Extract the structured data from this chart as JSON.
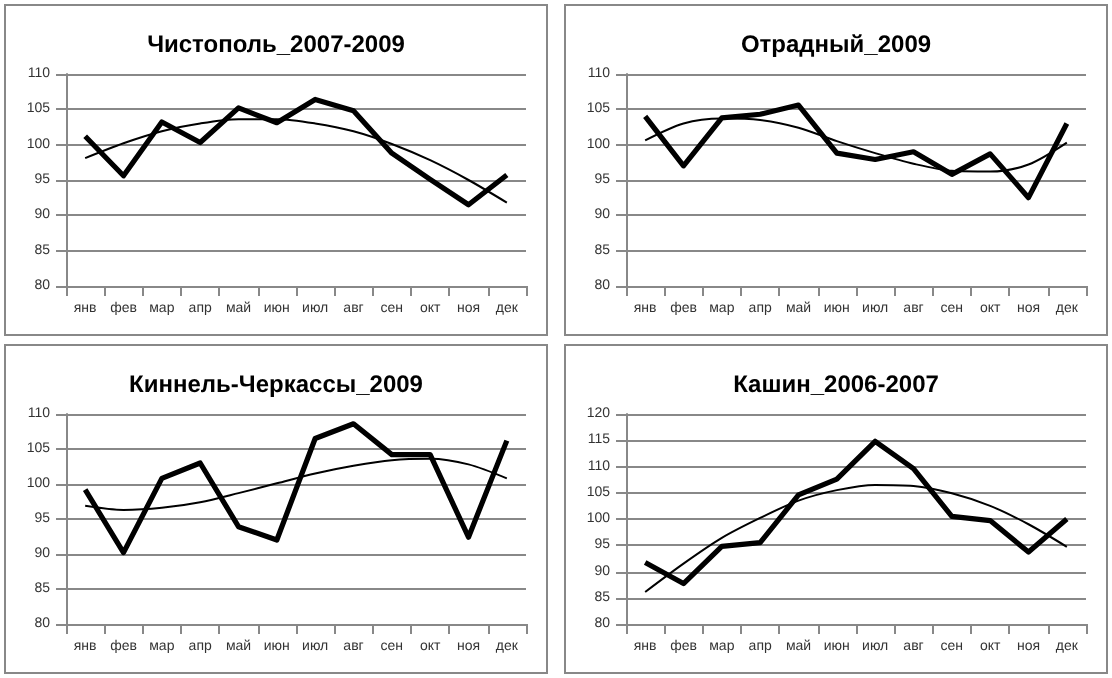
{
  "chart_data": [
    {
      "type": "line",
      "title": "Чистополь_2007-2009",
      "categories": [
        "янв",
        "фев",
        "мар",
        "апр",
        "май",
        "июн",
        "июл",
        "авг",
        "сен",
        "окт",
        "ноя",
        "дек"
      ],
      "ylim": [
        80,
        110
      ],
      "yticks": [
        80,
        85,
        90,
        95,
        100,
        105,
        110
      ],
      "grid": "y",
      "marker": "none",
      "line_style": "solid",
      "series": [
        {
          "color": "#000000",
          "values": [
            101.2,
            95.6,
            103.2,
            100.3,
            105.2,
            103.1,
            106.4,
            104.8,
            98.8,
            95.1,
            91.5,
            95.7
          ]
        },
        {
          "color": "#000000",
          "values": [
            98.1,
            100.2,
            101.9,
            103.0,
            103.6,
            103.6,
            103.0,
            101.9,
            100.1,
            97.8,
            95.0,
            91.8
          ]
        }
      ]
    },
    {
      "type": "line",
      "title": "Отрадный_2009",
      "categories": [
        "янв",
        "фев",
        "мар",
        "апр",
        "май",
        "июн",
        "июл",
        "авг",
        "сен",
        "окт",
        "ноя",
        "дек"
      ],
      "ylim": [
        80,
        110
      ],
      "yticks": [
        80,
        85,
        90,
        95,
        100,
        105,
        110
      ],
      "grid": "y",
      "marker": "none",
      "line_style": "solid",
      "series": [
        {
          "color": "#000000",
          "values": [
            104.0,
            97.0,
            103.8,
            104.3,
            105.6,
            98.8,
            97.9,
            99.0,
            95.8,
            98.7,
            92.5,
            103.0
          ]
        },
        {
          "color": "#000000",
          "values": [
            100.6,
            103.0,
            103.7,
            103.5,
            102.4,
            100.5,
            98.8,
            97.3,
            96.3,
            96.2,
            97.2,
            100.3
          ]
        }
      ]
    },
    {
      "type": "line",
      "title": "Киннель-Черкассы_2009",
      "categories": [
        "янв",
        "фев",
        "мар",
        "апр",
        "май",
        "июн",
        "июл",
        "авг",
        "сен",
        "окт",
        "ноя",
        "дек"
      ],
      "ylim": [
        80,
        110
      ],
      "yticks": [
        80,
        85,
        90,
        95,
        100,
        105,
        110
      ],
      "grid": "y",
      "marker": "none",
      "line_style": "solid",
      "series": [
        {
          "color": "#000000",
          "values": [
            99.2,
            90.2,
            100.8,
            103.0,
            93.9,
            92.0,
            106.5,
            108.6,
            104.2,
            104.2,
            92.4,
            106.2
          ]
        },
        {
          "color": "#000000",
          "values": [
            96.9,
            96.3,
            96.6,
            97.4,
            98.7,
            100.1,
            101.5,
            102.6,
            103.4,
            103.6,
            102.8,
            100.8
          ]
        }
      ]
    },
    {
      "type": "line",
      "title": "Кашин_2006-2007",
      "categories": [
        "янв",
        "фев",
        "мар",
        "апр",
        "май",
        "июн",
        "июл",
        "авг",
        "сен",
        "окт",
        "ноя",
        "дек"
      ],
      "ylim": [
        80,
        120
      ],
      "yticks": [
        80,
        85,
        90,
        95,
        100,
        105,
        110,
        115,
        120
      ],
      "grid": "y",
      "marker": "none",
      "line_style": "solid",
      "series": [
        {
          "color": "#000000",
          "values": [
            91.7,
            87.7,
            94.8,
            95.5,
            104.6,
            107.6,
            114.8,
            109.6,
            100.5,
            99.7,
            93.7,
            100.0
          ]
        },
        {
          "color": "#000000",
          "values": [
            86.1,
            91.5,
            96.4,
            100.2,
            103.5,
            105.5,
            106.5,
            106.3,
            104.9,
            102.5,
            99.0,
            94.7
          ]
        }
      ]
    }
  ]
}
